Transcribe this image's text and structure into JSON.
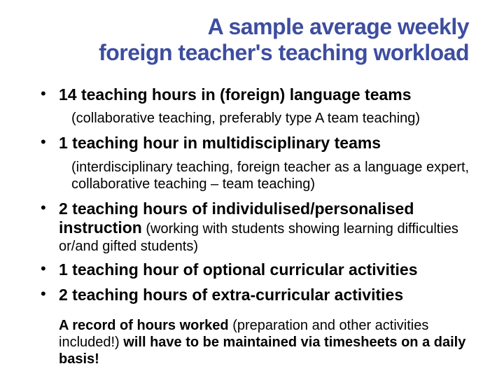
{
  "title_line1": "A sample average weekly",
  "title_line2": "foreign teacher's teaching workload",
  "colors": {
    "title": "#3d4da0",
    "body_text": "#000000",
    "background": "#ffffff"
  },
  "typography": {
    "title_fontsize_pt": 24,
    "title_weight": 900,
    "body_head_fontsize_pt": 17,
    "body_sub_fontsize_pt": 15,
    "footer_fontsize_pt": 15,
    "font_family": "Arial"
  },
  "bullets": [
    {
      "head": "14 teaching hours in (foreign) language teams",
      "sub_inline": "",
      "sub_below": "(collaborative teaching, preferably type A team teaching)"
    },
    {
      "head": "1 teaching hour in multidisciplinary teams",
      "sub_inline": "",
      "sub_below": "(interdisciplinary teaching, foreign teacher as a language expert, collaborative teaching – team teaching)"
    },
    {
      "head": "2 teaching hours of individulised/personalised instruction",
      "sub_inline": " (working with students showing learning difficulties or/and gifted students)",
      "sub_below": ""
    },
    {
      "head": "1 teaching hour of optional curricular activities",
      "sub_inline": "",
      "sub_below": ""
    },
    {
      "head": "2 teaching hours of extra-curricular activities",
      "sub_inline": "",
      "sub_below": ""
    }
  ],
  "footer": {
    "bold1": "A record of hours worked",
    "mid": " (preparation and other activities included!) ",
    "bold2": "will have to be maintained via timesheets on a daily basis!"
  }
}
